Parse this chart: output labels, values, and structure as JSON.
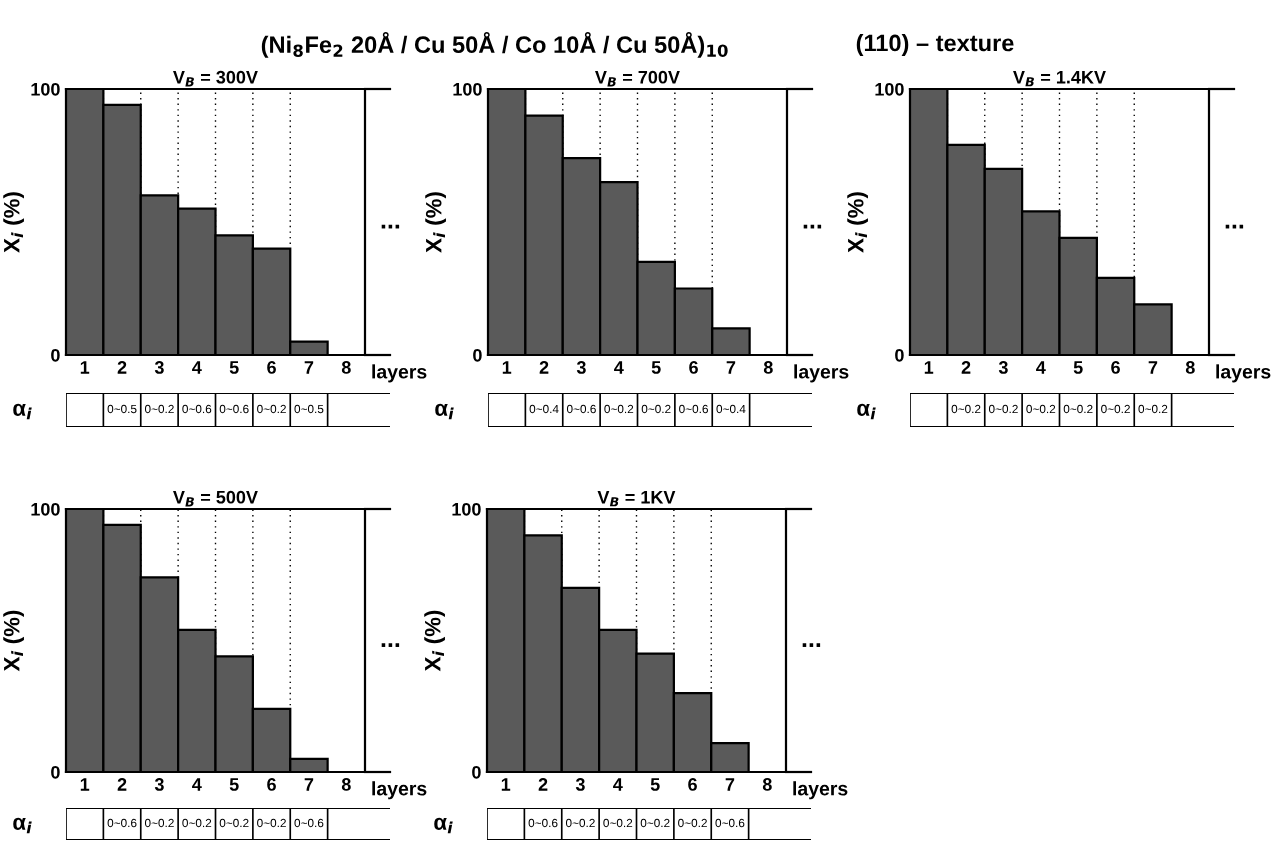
{
  "chart_data": [
    {
      "type": "bar",
      "title": "V$_{B}$ = 300V",
      "xlabel": "layers",
      "ylabel": "X$_{i}$ (%)",
      "categories": [
        "1",
        "2",
        "3",
        "4",
        "5",
        "6",
        "7",
        "8"
      ],
      "values": [
        100,
        94,
        60,
        55,
        45,
        40,
        5,
        null
      ],
      "color": "#5a5a5a",
      "ylim": [
        0,
        100
      ],
      "yticks": [
        0,
        100
      ],
      "grid": "x",
      "annotations": [
        "α$_{i}$",
        "0~0.5",
        "0~0.2",
        "0~0.6",
        "0~0.6",
        "0~0.2",
        "0~0.5",
        "...",
        "(Ni$_{8}$Fe$_{2}$ 20Å / Cu 50Å / Co 10Å / Cu 50Å)$_{10}$",
        "(110) – texture"
      ]
    },
    {
      "type": "bar",
      "title": "V$_{B}$ = 700V",
      "xlabel": "layers",
      "ylabel": "X$_{i}$ (%)",
      "categories": [
        "1",
        "2",
        "3",
        "4",
        "5",
        "6",
        "7",
        "8"
      ],
      "values": [
        100,
        90,
        74,
        65,
        35,
        25,
        10,
        null
      ],
      "color": "#5a5a5a",
      "ylim": [
        0,
        100
      ],
      "yticks": [
        0,
        100
      ],
      "grid": "x",
      "annotations": [
        "α$_{i}$",
        "0~0.4",
        "0~0.6",
        "0~0.2",
        "0~0.2",
        "0~0.6",
        "0~0.4",
        "..."
      ]
    },
    {
      "type": "bar",
      "title": "V$_{B}$ = 1.4KV",
      "xlabel": "layers",
      "ylabel": "X$_{i}$ (%)",
      "categories": [
        "1",
        "2",
        "3",
        "4",
        "5",
        "6",
        "7",
        "8"
      ],
      "values": [
        100,
        79,
        70,
        54,
        44,
        29,
        19,
        null
      ],
      "color": "#5a5a5a",
      "ylim": [
        0,
        100
      ],
      "yticks": [
        0,
        100
      ],
      "grid": "x",
      "annotations": [
        "α$_{i}$",
        "0~0.2",
        "0~0.2",
        "0~0.2",
        "0~0.2",
        "0~0.2",
        "0~0.2",
        "..."
      ]
    },
    {
      "type": "bar",
      "title": "V$_{B}$ = 500V",
      "xlabel": "layers",
      "ylabel": "X$_{i}$ (%)",
      "categories": [
        "1",
        "2",
        "3",
        "4",
        "5",
        "6",
        "7",
        "8"
      ],
      "values": [
        100,
        94,
        74,
        54,
        44,
        24,
        5,
        null
      ],
      "color": "#5a5a5a",
      "ylim": [
        0,
        100
      ],
      "yticks": [
        0,
        100
      ],
      "grid": "x",
      "annotations": [
        "α$_{i}$",
        "0~0.6",
        "0~0.2",
        "0~0.2",
        "0~0.2",
        "0~0.2",
        "0~0.6",
        "..."
      ]
    },
    {
      "type": "bar",
      "title": "V$_{B}$ = 1KV",
      "xlabel": "layers",
      "ylabel": "X$_{i}$ (%)",
      "categories": [
        "1",
        "2",
        "3",
        "4",
        "5",
        "6",
        "7",
        "8"
      ],
      "values": [
        100,
        90,
        70,
        54,
        45,
        30,
        11,
        null
      ],
      "color": "#5a5a5a",
      "ylim": [
        0,
        100
      ],
      "yticks": [
        0,
        100
      ],
      "grid": "x",
      "annotations": [
        "α$_{i}$",
        "0~0.6",
        "0~0.2",
        "0~0.2",
        "0~0.2",
        "0~0.2",
        "0~0.6",
        "..."
      ]
    }
  ]
}
